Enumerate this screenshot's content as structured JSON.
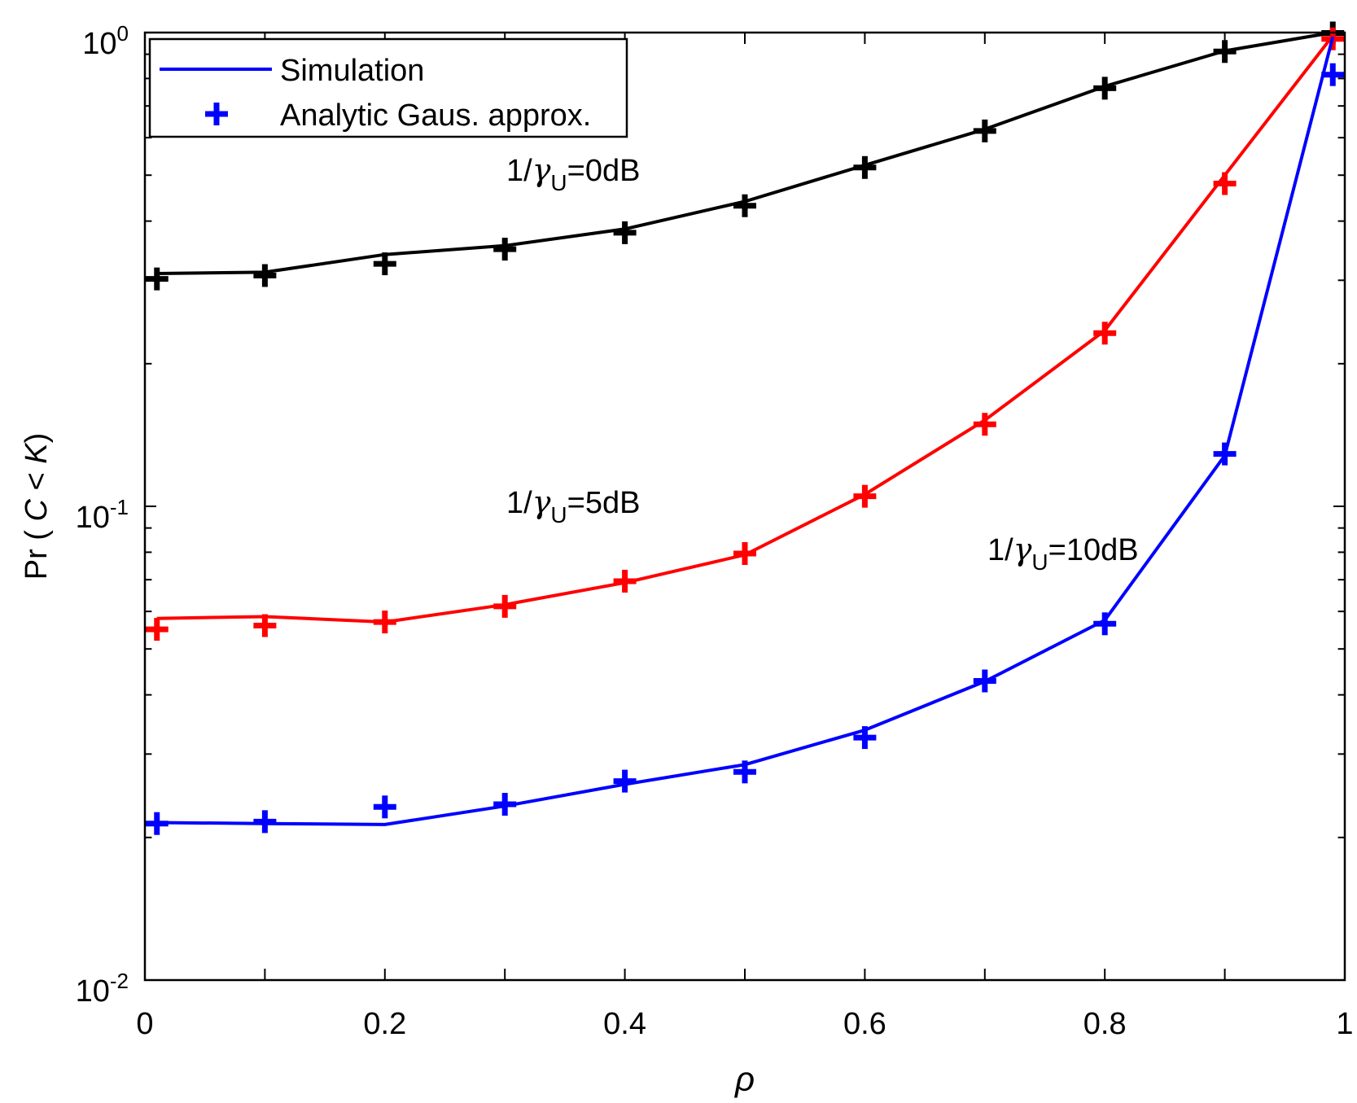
{
  "chart_data": {
    "type": "line",
    "title": "",
    "xlabel": "ρ",
    "ylabel": "Pr ( C < K)",
    "ylabel_parts": {
      "pre": "Pr ( ",
      "c": "C",
      "mid": " < ",
      "k": "K",
      "post": ")"
    },
    "xlim": [
      0,
      1
    ],
    "ylim": [
      0.01,
      1
    ],
    "yscale": "log",
    "grid": false,
    "x_ticks": [
      "0",
      "0.2",
      "0.4",
      "0.6",
      "0.8",
      "1"
    ],
    "y_ticks": [
      {
        "base": "10",
        "exp": "0",
        "value": 1
      },
      {
        "base": "10",
        "exp": "-1",
        "value": 0.1
      },
      {
        "base": "10",
        "exp": "-2",
        "value": 0.01
      }
    ],
    "x": [
      0.01,
      0.1,
      0.2,
      0.3,
      0.4,
      0.5,
      0.6,
      0.7,
      0.8,
      0.9,
      0.99
    ],
    "series": [
      {
        "name": "1/γU=0dB",
        "color": "#000000",
        "simulation": [
          0.31,
          0.312,
          0.34,
          0.355,
          0.385,
          0.44,
          0.525,
          0.625,
          0.77,
          0.915,
          1.0
        ],
        "analytic": [
          0.302,
          0.307,
          0.325,
          0.349,
          0.378,
          0.431,
          0.519,
          0.62,
          0.763,
          0.912,
          0.998
        ]
      },
      {
        "name": "1/γU=5dB",
        "color": "#ff0000",
        "simulation": [
          0.058,
          0.0585,
          0.057,
          0.062,
          0.069,
          0.079,
          0.106,
          0.152,
          0.235,
          0.5,
          0.985
        ],
        "analytic": [
          0.055,
          0.056,
          0.057,
          0.0615,
          0.0695,
          0.0795,
          0.105,
          0.149,
          0.232,
          0.48,
          0.97
        ]
      },
      {
        "name": "1/γU=10dB",
        "color": "#0000ff",
        "simulation": [
          0.0215,
          0.0214,
          0.0213,
          0.0233,
          0.0259,
          0.0285,
          0.0337,
          0.0427,
          0.0575,
          0.128,
          0.98
        ],
        "analytic": [
          0.0214,
          0.0216,
          0.0232,
          0.0235,
          0.0263,
          0.0275,
          0.0325,
          0.0428,
          0.0565,
          0.129,
          0.815
        ]
      }
    ],
    "legend": {
      "position": "top-left",
      "entries": [
        "Simulation",
        "Analytic Gaus. approx."
      ],
      "color": "#0000ff"
    },
    "annotations": [
      {
        "series": 0,
        "pre": "1/",
        "sym": "γ",
        "sub": "U",
        "post": "=0dB"
      },
      {
        "series": 1,
        "pre": "1/",
        "sym": "γ",
        "sub": "U",
        "post": "=5dB"
      },
      {
        "series": 2,
        "pre": "1/",
        "sym": "γ",
        "sub": "U",
        "post": "=10dB"
      }
    ]
  }
}
